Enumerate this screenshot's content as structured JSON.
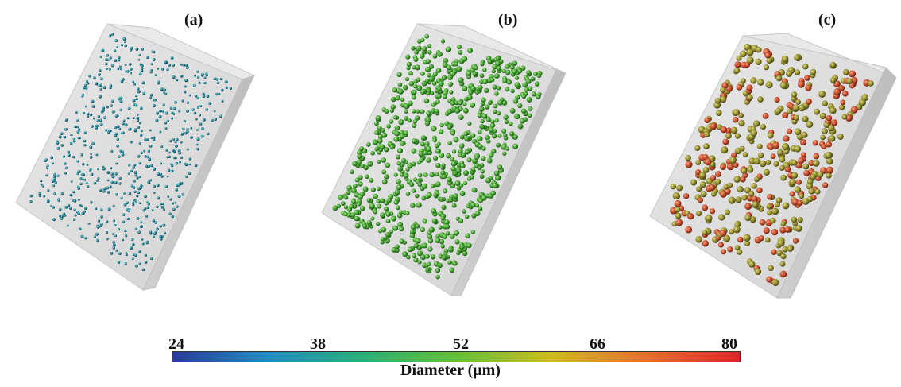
{
  "panels": [
    {
      "label": "(a)",
      "particle_color": "#1f7e8c",
      "particle_count": 620,
      "particle_size": "small"
    },
    {
      "label": "(b)",
      "particle_color": "#3f9a2c",
      "particle_count": 760,
      "particle_size": "medium"
    },
    {
      "label": "(c)",
      "particle_color": "#8f8a2b",
      "particle_color_alt": "#c44a2a",
      "particle_count": 430,
      "particle_size": "large"
    }
  ],
  "colorbar": {
    "title": "Diameter (μm)",
    "ticks": [
      "24",
      "38",
      "52",
      "66",
      "80"
    ],
    "min": 24,
    "max": 80,
    "colors": [
      "#2b3a9c",
      "#1e8cc2",
      "#26b07a",
      "#64c034",
      "#cdbd21",
      "#e8702a",
      "#d9262a"
    ]
  },
  "box_color": "#dedede"
}
